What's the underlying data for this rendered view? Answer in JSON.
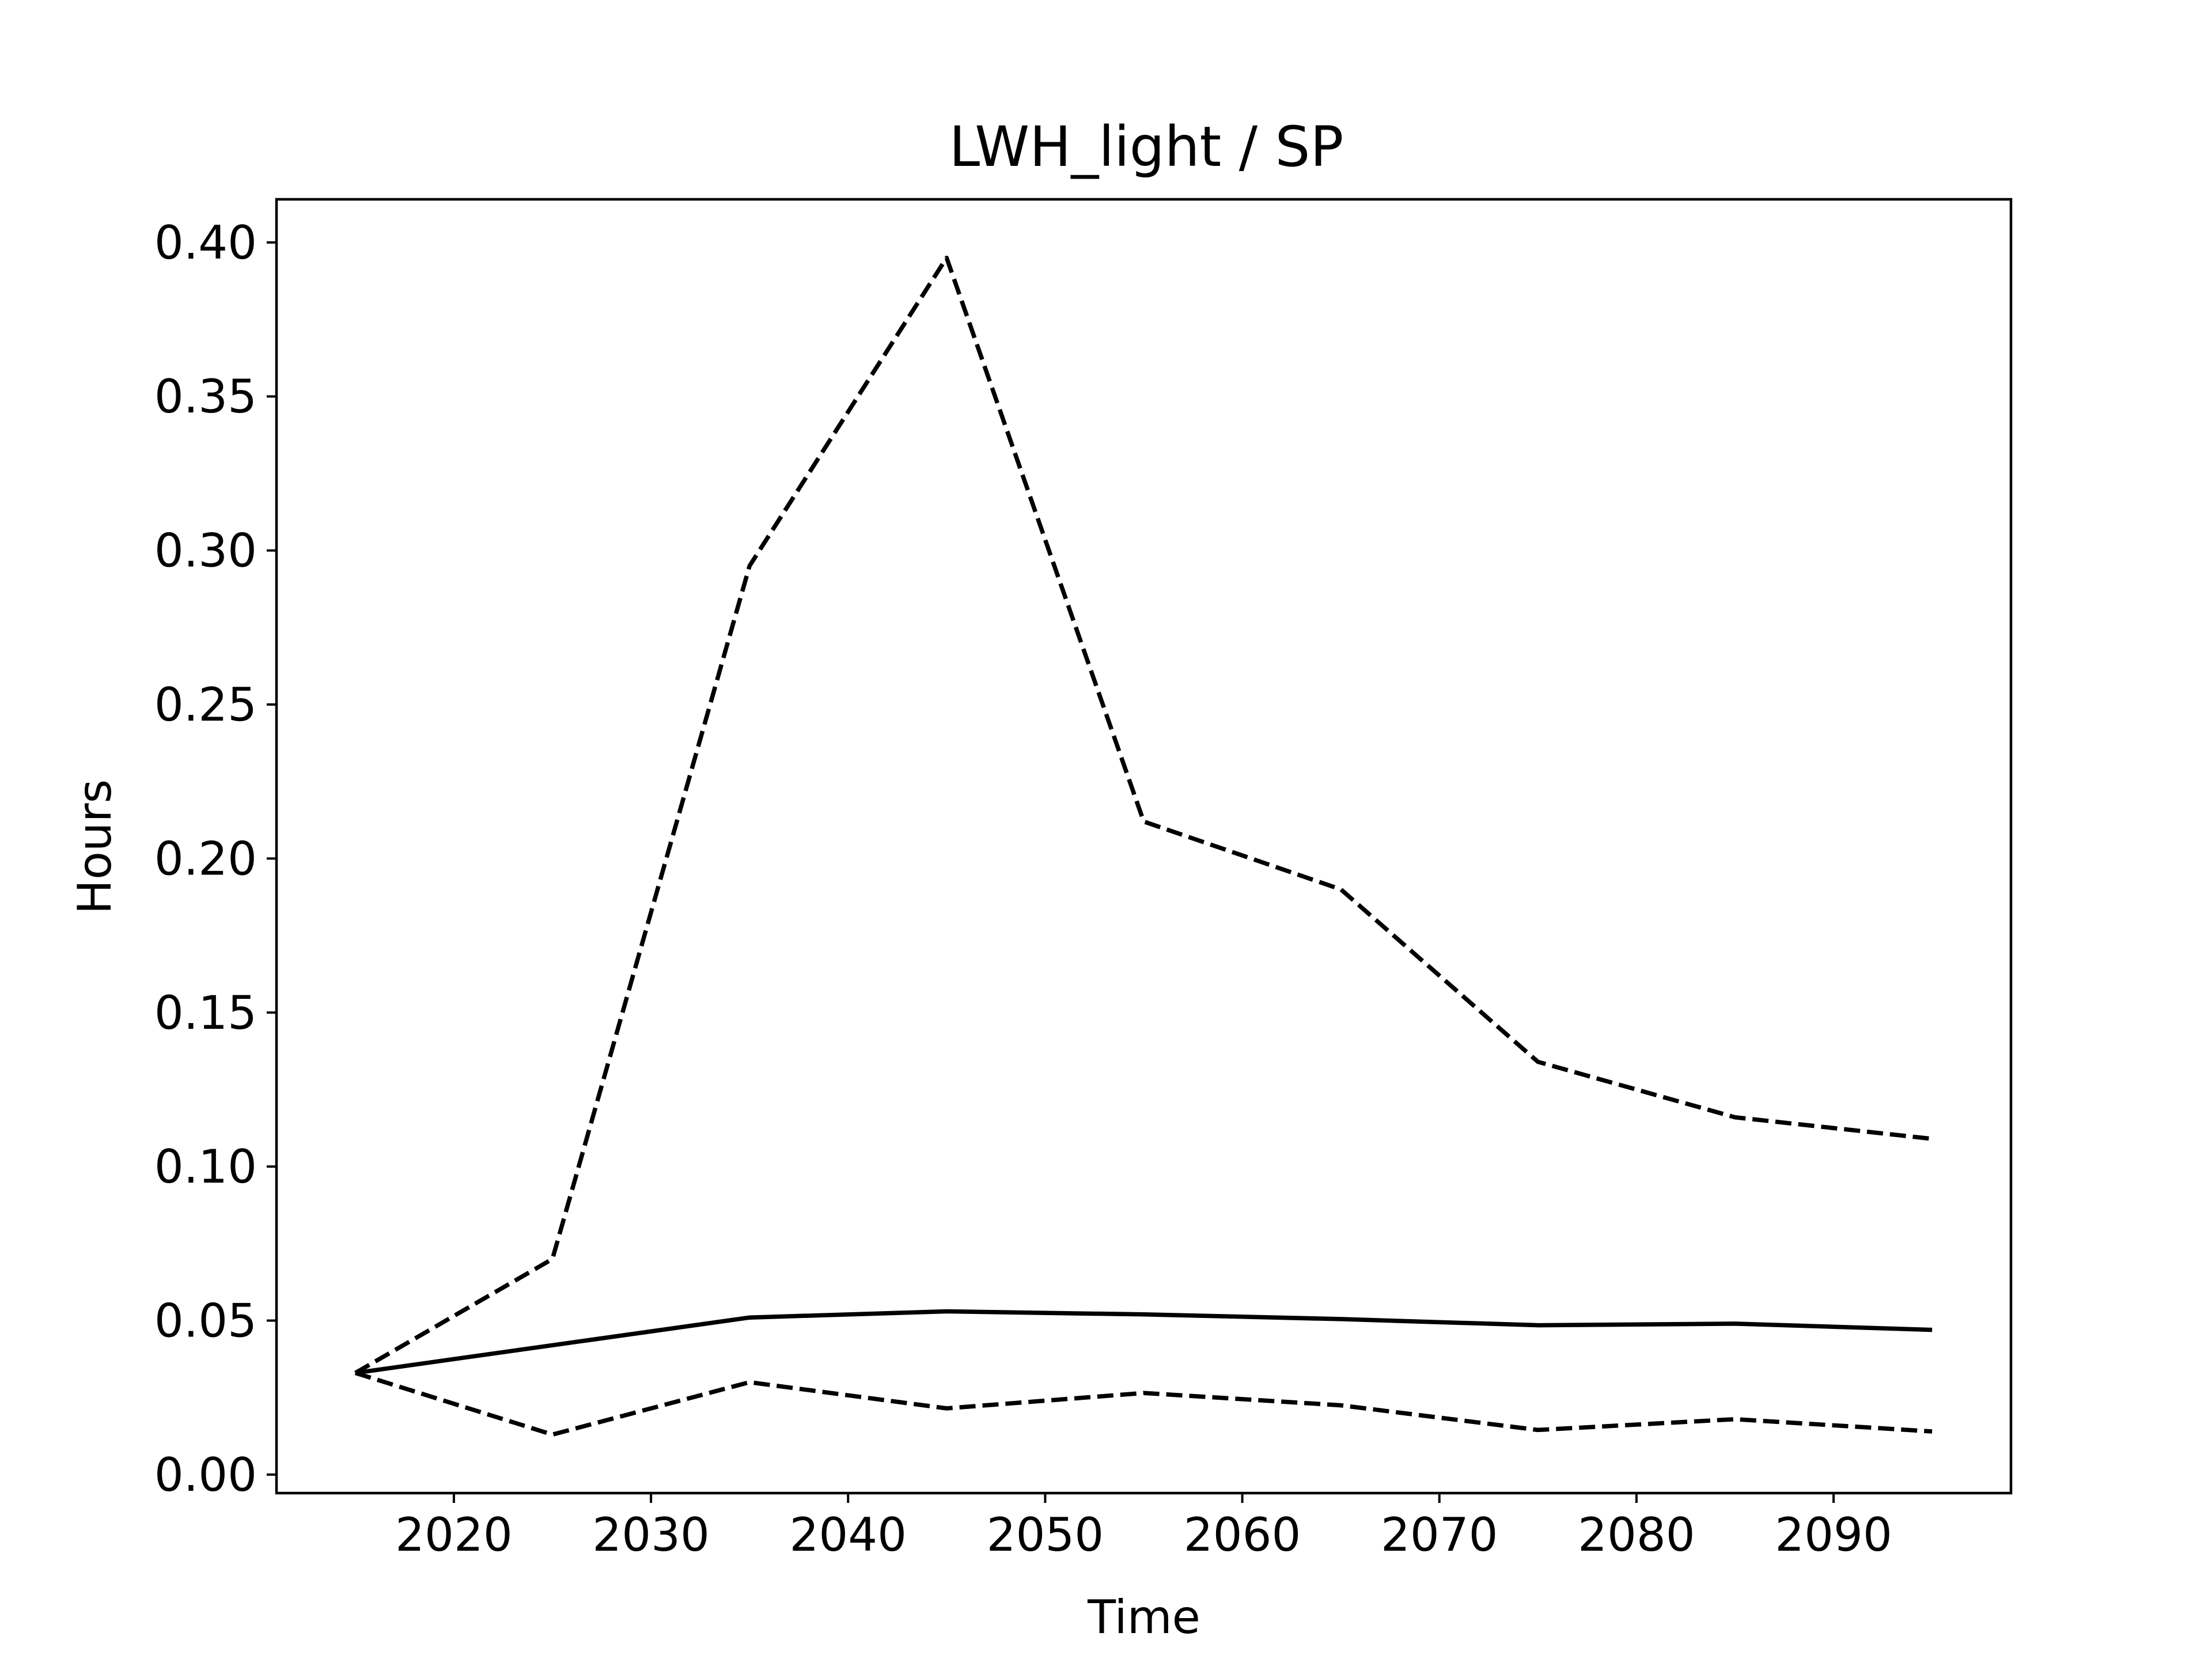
{
  "chart_data": {
    "type": "line",
    "title": "LWH_light / SP",
    "xlabel": "Time",
    "ylabel": "Hours",
    "xlim": [
      2011,
      2099
    ],
    "ylim": [
      -0.006,
      0.414
    ],
    "x_ticks": [
      2020,
      2030,
      2040,
      2050,
      2060,
      2070,
      2080,
      2090
    ],
    "y_ticks": [
      0.0,
      0.05,
      0.1,
      0.15,
      0.2,
      0.25,
      0.3,
      0.35,
      0.4
    ],
    "y_tick_labels": [
      "0.00",
      "0.05",
      "0.10",
      "0.15",
      "0.20",
      "0.25",
      "0.30",
      "0.35",
      "0.40"
    ],
    "grid": false,
    "series": [
      {
        "style": "solid",
        "color": "#000000",
        "x": [
          2015,
          2025,
          2035,
          2045,
          2055,
          2065,
          2075,
          2085,
          2095
        ],
        "y": [
          0.033,
          0.042,
          0.051,
          0.053,
          0.052,
          0.0505,
          0.0485,
          0.049,
          0.047
        ]
      },
      {
        "style": "dashed",
        "color": "#000000",
        "x": [
          2015,
          2025,
          2035,
          2045,
          2055,
          2065,
          2075,
          2085,
          2095
        ],
        "y": [
          0.033,
          0.07,
          0.295,
          0.395,
          0.212,
          0.19,
          0.134,
          0.116,
          0.109
        ]
      },
      {
        "style": "dashed",
        "color": "#000000",
        "x": [
          2015,
          2025,
          2035,
          2045,
          2055,
          2065,
          2075,
          2085,
          2095
        ],
        "y": [
          0.033,
          0.013,
          0.03,
          0.0215,
          0.0265,
          0.0225,
          0.0145,
          0.018,
          0.014
        ]
      }
    ]
  }
}
